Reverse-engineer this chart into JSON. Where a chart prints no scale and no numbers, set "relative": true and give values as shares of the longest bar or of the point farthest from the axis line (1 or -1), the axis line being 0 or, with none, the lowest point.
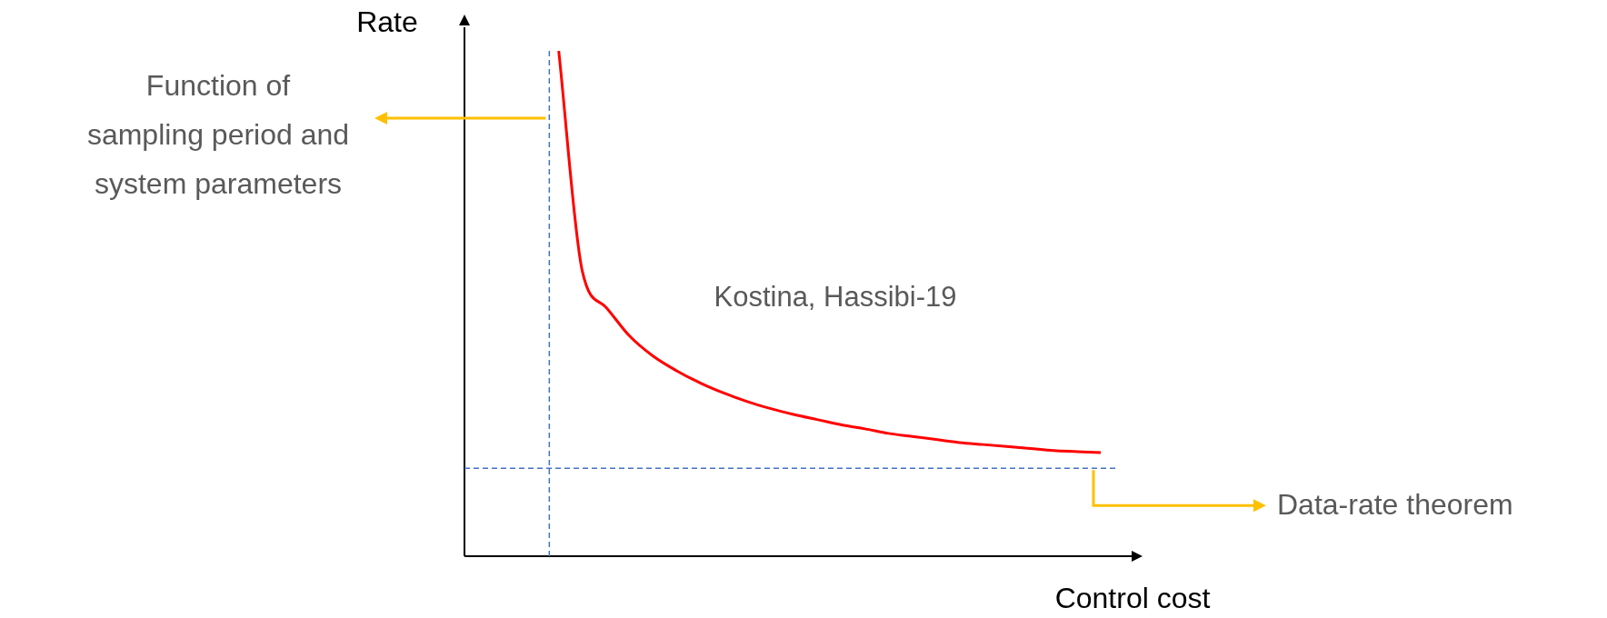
{
  "chart_data": {
    "type": "line",
    "relative": true,
    "xlabel": "Control cost",
    "ylabel": "Rate",
    "categories": [
      null,
      null,
      null,
      null,
      null,
      null,
      null,
      null,
      null,
      null,
      null,
      null,
      null,
      null,
      null,
      null,
      null,
      null,
      null,
      null,
      null,
      null,
      null,
      null,
      null,
      null,
      null,
      null,
      null
    ],
    "series": [
      {
        "color": "#ff0000",
        "values": [
          null,
          null,
          null,
          null,
          1.0,
          0.564,
          0.493,
          0.436,
          0.396,
          0.367,
          0.343,
          0.323,
          0.306,
          0.292,
          0.28,
          0.27,
          0.26,
          0.252,
          0.243,
          0.237,
          0.231,
          0.225,
          0.221,
          0.217,
          0.213,
          0.209,
          0.207,
          0.205,
          null
        ]
      }
    ],
    "ref_lines": [
      {
        "axis": "y",
        "value": 0.174,
        "label": "Data-rate theorem",
        "color": "#4472c4",
        "line_style": "dashed"
      }
    ],
    "annotations": [
      "Function of\nsampling period and\nsystem parameters",
      "Kostina, Hassibi-19"
    ],
    "grid": false,
    "legend": false,
    "marker": "none",
    "line_style": "solid"
  }
}
